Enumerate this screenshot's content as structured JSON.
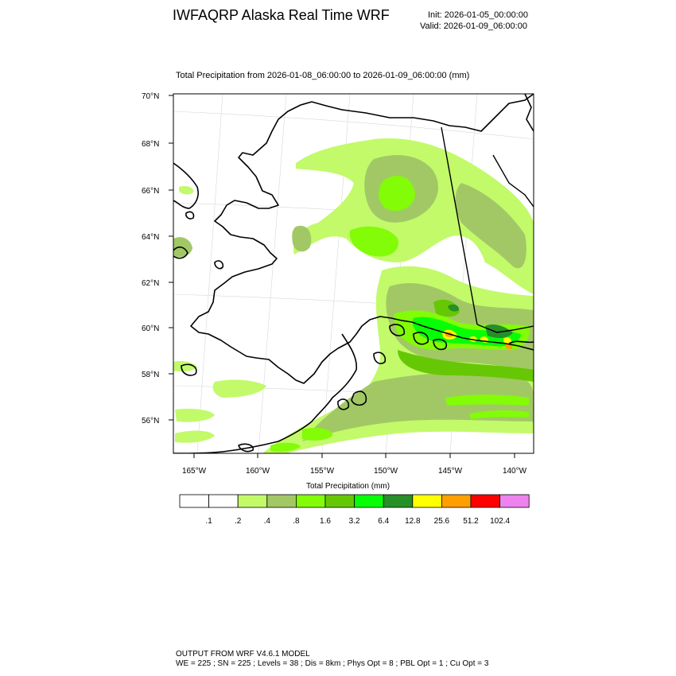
{
  "header": {
    "title": "IWFAQRP Alaska Real Time WRF",
    "init": "Init: 2026-01-05_00:00:00",
    "valid": "Valid: 2026-01-09_06:00:00"
  },
  "plot": {
    "title": "Total Precipitation from 2026-01-08_06:00:00 to 2026-01-09_06:00:00   (mm)",
    "lat_labels": [
      "70°N",
      "68°N",
      "66°N",
      "64°N",
      "62°N",
      "60°N",
      "58°N",
      "56°N"
    ],
    "lon_labels": [
      "165°W",
      "160°W",
      "155°W",
      "150°W",
      "145°W",
      "140°W"
    ]
  },
  "colorbar": {
    "title": "Total Precipitation  (mm)",
    "levels": [
      ".1",
      ".2",
      ".4",
      ".8",
      "1.6",
      "3.2",
      "6.4",
      "12.8",
      "25.6",
      "51.2",
      "102.4"
    ],
    "colors": [
      "#ffffff",
      "#ffffff",
      "#c2fa6a",
      "#a2c866",
      "#82fc07",
      "#66c804",
      "#06ff06",
      "#268f27",
      "#ffff00",
      "#ff9f00",
      "#ff0000",
      "#ee82ee"
    ]
  },
  "footer": {
    "line1": "OUTPUT FROM WRF V4.6.1 MODEL",
    "line2": "WE = 225 ; SN = 225 ; Levels = 38 ; Dis = 8km ; Phys Opt = 8 ; PBL Opt = 1 ; Cu Opt = 3"
  }
}
